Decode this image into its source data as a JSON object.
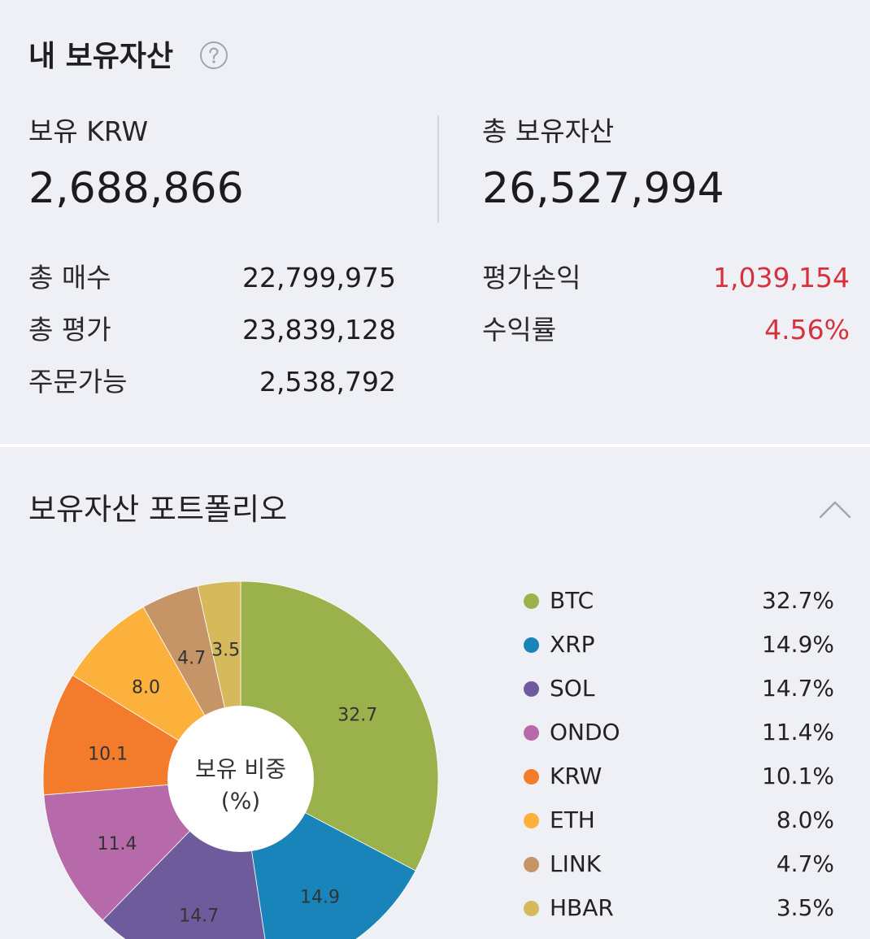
{
  "header": {
    "title": "내 보유자산",
    "help_icon": "question-circle-icon"
  },
  "summary": {
    "krw": {
      "label": "보유 KRW",
      "value": "2,688,866"
    },
    "total": {
      "label": "총 보유자산",
      "value": "26,527,994"
    }
  },
  "details": {
    "left": [
      {
        "label": "총 매수",
        "value": "22,799,975"
      },
      {
        "label": "총 평가",
        "value": "23,839,128"
      },
      {
        "label": "주문가능",
        "value": "2,538,792"
      }
    ],
    "right": [
      {
        "label": "평가손익",
        "value": "1,039,154"
      },
      {
        "label": "수익률",
        "value": "4.56%"
      }
    ]
  },
  "colors": {
    "text": "#222222",
    "background": "#eef0f6",
    "profit": "#d6323e",
    "muted": "#a3a5ab"
  },
  "portfolio": {
    "title": "보유자산 포트폴리오",
    "toggle_icon": "chevron-up-icon",
    "center_label": [
      "보유 비중",
      "(%)"
    ]
  },
  "chart_data": {
    "type": "pie",
    "donut": true,
    "categories": [
      "BTC",
      "XRP",
      "SOL",
      "ONDO",
      "KRW",
      "ETH",
      "LINK",
      "HBAR"
    ],
    "values": [
      32.7,
      14.9,
      14.7,
      11.4,
      10.1,
      8.0,
      4.7,
      3.5
    ],
    "colors": [
      "#9bb24c",
      "#1884ba",
      "#6e5b9c",
      "#b66aa9",
      "#f27b2c",
      "#fcb13c",
      "#c69567",
      "#d5b95b"
    ],
    "legend_position": "right",
    "title": ""
  }
}
